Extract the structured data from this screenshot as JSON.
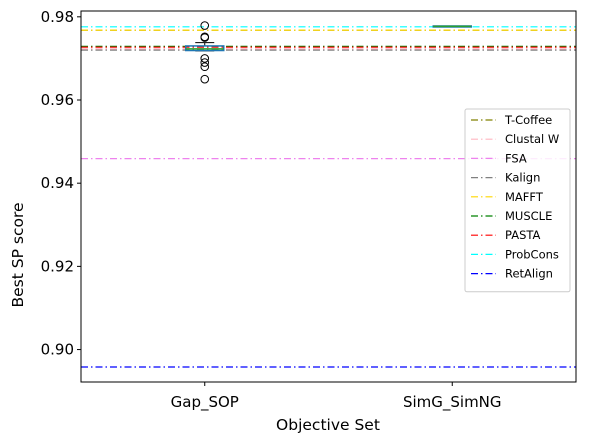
{
  "chart_data": {
    "type": "box",
    "xlabel": "Objective Set",
    "ylabel": "Best SP score",
    "categories": [
      "Gap_SOP",
      "SimG_SimNG"
    ],
    "ylim": [
      0.8922,
      0.9814
    ],
    "yticks": [
      0.9,
      0.92,
      0.94,
      0.96,
      0.98
    ],
    "ytick_labels": [
      "0.90",
      "0.92",
      "0.94",
      "0.96",
      "0.98"
    ],
    "boxes": [
      {
        "category": "Gap_SOP",
        "whislo": 0.9718,
        "q1": 0.9719,
        "median": 0.9723,
        "q3": 0.973,
        "whishi": 0.9738,
        "fliers": [
          0.9779,
          0.9752,
          0.975,
          0.97,
          0.969,
          0.968,
          0.965
        ]
      },
      {
        "category": "SimG_SimNG",
        "whislo": 0.9776,
        "q1": 0.9776,
        "median": 0.9777,
        "q3": 0.9778,
        "whishi": 0.9778,
        "fliers": []
      }
    ],
    "reference_lines": [
      {
        "name": "T-Coffee",
        "value": 0.9768,
        "color": "#808000"
      },
      {
        "name": "Clustal W",
        "value": 0.9723,
        "color": "#ffb6c1"
      },
      {
        "name": "FSA",
        "value": 0.9459,
        "color": "#ee82ee"
      },
      {
        "name": "Kalign",
        "value": 0.972,
        "color": "#808080"
      },
      {
        "name": "MAFFT",
        "value": 0.9768,
        "color": "#ffd700"
      },
      {
        "name": "MUSCLE",
        "value": 0.9729,
        "color": "#008000"
      },
      {
        "name": "PASTA",
        "value": 0.9727,
        "color": "#ff0000"
      },
      {
        "name": "ProbCons",
        "value": 0.9776,
        "color": "#00ffff"
      },
      {
        "name": "RetAlign",
        "value": 0.8958,
        "color": "#0000ff"
      }
    ],
    "box_color": "#1f77b4",
    "median_color": "#2ca02c",
    "legend_position": "center-right",
    "grid": false
  }
}
